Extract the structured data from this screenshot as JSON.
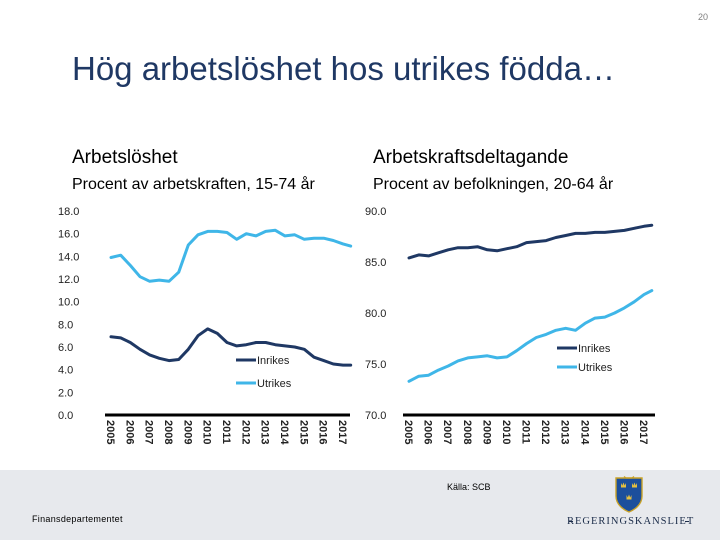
{
  "slide": {
    "page_number": "20",
    "title": "Hög arbetslöshet hos utrikes födda…",
    "source": "Källa: SCB",
    "ministry": "Finansdepartementet",
    "logo_text": "REGERINGSKANSLIET"
  },
  "panels": [
    {
      "heading": "Arbetslöshet",
      "subheading": "Procent av arbetskraften, 15-74 år"
    },
    {
      "heading": "Arbetskraftsdeltagande",
      "subheading": "Procent av befolkningen, 20-64 år"
    }
  ],
  "colors": {
    "title": "#1f3864",
    "inrikes": "#1f3864",
    "utrikes": "#3fb6e8",
    "footer": "#e7e9ed"
  },
  "chart_data": [
    {
      "type": "line",
      "title": "Arbetslöshet",
      "subtitle": "Procent av arbetskraften, 15-74 år",
      "x_ticks": [
        "2005",
        "2006",
        "2007",
        "2008",
        "2009",
        "2010",
        "2011",
        "2012",
        "2013",
        "2014",
        "2015",
        "2016",
        "2017"
      ],
      "y_ticks": [
        "0.0",
        "2.0",
        "4.0",
        "6.0",
        "8.0",
        "10.0",
        "12.0",
        "14.0",
        "16.0",
        "18.0"
      ],
      "ylim": [
        0,
        18
      ],
      "legend_position": "inside-right",
      "series": [
        {
          "name": "Inrikes",
          "color": "#1f3864",
          "x": [
            2005,
            2005.5,
            2006,
            2006.5,
            2007,
            2007.5,
            2008,
            2008.5,
            2009,
            2009.5,
            2010,
            2010.5,
            2011,
            2011.5,
            2012,
            2012.5,
            2013,
            2013.5,
            2014,
            2014.5,
            2015,
            2015.5,
            2016,
            2016.5,
            2017,
            2017.4
          ],
          "values": [
            6.9,
            6.8,
            6.4,
            5.8,
            5.3,
            5.0,
            4.8,
            4.9,
            5.8,
            7.0,
            7.6,
            7.2,
            6.4,
            6.1,
            6.2,
            6.4,
            6.4,
            6.2,
            6.1,
            6.0,
            5.8,
            5.1,
            4.8,
            4.5,
            4.4,
            4.4
          ]
        },
        {
          "name": "Utrikes",
          "color": "#3fb6e8",
          "x": [
            2005,
            2005.5,
            2006,
            2006.5,
            2007,
            2007.5,
            2008,
            2008.5,
            2009,
            2009.5,
            2010,
            2010.5,
            2011,
            2011.5,
            2012,
            2012.5,
            2013,
            2013.5,
            2014,
            2014.5,
            2015,
            2015.5,
            2016,
            2016.5,
            2017,
            2017.4
          ],
          "values": [
            13.9,
            14.1,
            13.2,
            12.2,
            11.8,
            11.9,
            11.8,
            12.6,
            15.0,
            15.9,
            16.2,
            16.2,
            16.1,
            15.5,
            16.0,
            15.8,
            16.2,
            16.3,
            15.8,
            15.9,
            15.5,
            15.6,
            15.6,
            15.4,
            15.1,
            14.9
          ]
        }
      ]
    },
    {
      "type": "line",
      "title": "Arbetskraftsdeltagande",
      "subtitle": "Procent av befolkningen, 20-64 år",
      "x_ticks": [
        "2005",
        "2006",
        "2007",
        "2008",
        "2009",
        "2010",
        "2011",
        "2012",
        "2013",
        "2014",
        "2015",
        "2016",
        "2017"
      ],
      "y_ticks": [
        "70.0",
        "75.0",
        "80.0",
        "85.0",
        "90.0"
      ],
      "ylim": [
        70,
        90
      ],
      "legend_position": "inside-right",
      "series": [
        {
          "name": "Inrikes",
          "color": "#1f3864",
          "x": [
            2005,
            2005.5,
            2006,
            2006.5,
            2007,
            2007.5,
            2008,
            2008.5,
            2009,
            2009.5,
            2010,
            2010.5,
            2011,
            2011.5,
            2012,
            2012.5,
            2013,
            2013.5,
            2014,
            2014.5,
            2015,
            2015.5,
            2016,
            2016.5,
            2017,
            2017.4
          ],
          "values": [
            85.4,
            85.7,
            85.6,
            85.9,
            86.2,
            86.4,
            86.4,
            86.5,
            86.2,
            86.1,
            86.3,
            86.5,
            86.9,
            87.0,
            87.1,
            87.4,
            87.6,
            87.8,
            87.8,
            87.9,
            87.9,
            88.0,
            88.1,
            88.3,
            88.5,
            88.6
          ]
        },
        {
          "name": "Utrikes",
          "color": "#3fb6e8",
          "x": [
            2005,
            2005.5,
            2006,
            2006.5,
            2007,
            2007.5,
            2008,
            2008.5,
            2009,
            2009.5,
            2010,
            2010.5,
            2011,
            2011.5,
            2012,
            2012.5,
            2013,
            2013.5,
            2014,
            2014.5,
            2015,
            2015.5,
            2016,
            2016.5,
            2017,
            2017.4
          ],
          "values": [
            73.3,
            73.8,
            73.9,
            74.4,
            74.8,
            75.3,
            75.6,
            75.7,
            75.8,
            75.6,
            75.7,
            76.3,
            77.0,
            77.6,
            77.9,
            78.3,
            78.5,
            78.3,
            79.0,
            79.5,
            79.6,
            80.0,
            80.5,
            81.1,
            81.8,
            82.2
          ]
        }
      ]
    }
  ]
}
